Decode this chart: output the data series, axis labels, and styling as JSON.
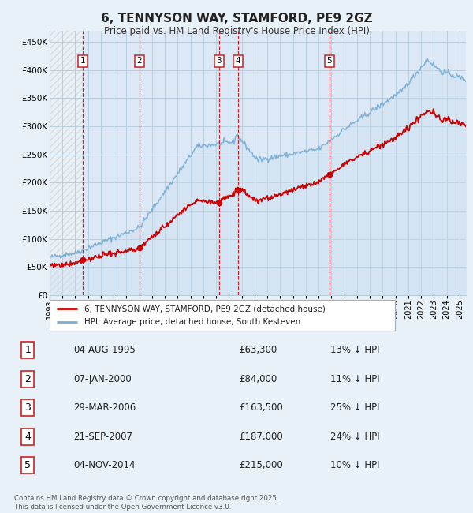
{
  "title": "6, TENNYSON WAY, STAMFORD, PE9 2GZ",
  "subtitle": "Price paid vs. HM Land Registry's House Price Index (HPI)",
  "legend_property": "6, TENNYSON WAY, STAMFORD, PE9 2GZ (detached house)",
  "legend_hpi": "HPI: Average price, detached house, South Kesteven",
  "footer": "Contains HM Land Registry data © Crown copyright and database right 2025.\nThis data is licensed under the Open Government Licence v3.0.",
  "sales": [
    {
      "num": 1,
      "date_x": 1995.58,
      "price": 63300,
      "label": "1",
      "date_str": "04-AUG-1995",
      "price_str": "£63,300",
      "pct": "13% ↓ HPI"
    },
    {
      "num": 2,
      "date_x": 2000.02,
      "price": 84000,
      "label": "2",
      "date_str": "07-JAN-2000",
      "price_str": "£84,000",
      "pct": "11% ↓ HPI"
    },
    {
      "num": 3,
      "date_x": 2006.23,
      "price": 163500,
      "label": "3",
      "date_str": "29-MAR-2006",
      "price_str": "£163,500",
      "pct": "25% ↓ HPI"
    },
    {
      "num": 4,
      "date_x": 2007.72,
      "price": 187000,
      "label": "4",
      "date_str": "21-SEP-2007",
      "price_str": "£187,000",
      "pct": "24% ↓ HPI"
    },
    {
      "num": 5,
      "date_x": 2014.84,
      "price": 215000,
      "label": "5",
      "date_str": "04-NOV-2014",
      "price_str": "£215,000",
      "pct": "10% ↓ HPI"
    }
  ],
  "xlim": [
    1993.0,
    2025.5
  ],
  "ylim": [
    0,
    470000
  ],
  "yticks": [
    0,
    50000,
    100000,
    150000,
    200000,
    250000,
    300000,
    350000,
    400000,
    450000
  ],
  "ytick_labels": [
    "£0",
    "£50K",
    "£100K",
    "£150K",
    "£200K",
    "£250K",
    "£300K",
    "£350K",
    "£400K",
    "£450K"
  ],
  "xticks": [
    1993,
    1994,
    1995,
    1996,
    1997,
    1998,
    1999,
    2000,
    2001,
    2002,
    2003,
    2004,
    2005,
    2006,
    2007,
    2008,
    2009,
    2010,
    2011,
    2012,
    2013,
    2014,
    2015,
    2016,
    2017,
    2018,
    2019,
    2020,
    2021,
    2022,
    2023,
    2024,
    2025
  ],
  "property_color": "#cc0000",
  "hpi_color": "#7aaed6",
  "hpi_fill_color": "#c8ddf0",
  "dashed_color": "#cc0000",
  "hatch_color": "#bbbbbb",
  "grid_color": "#b8cfe0",
  "bg_color": "#e8f0f8",
  "plot_bg": "#dce8f5",
  "number_box_color": "#cc2222"
}
